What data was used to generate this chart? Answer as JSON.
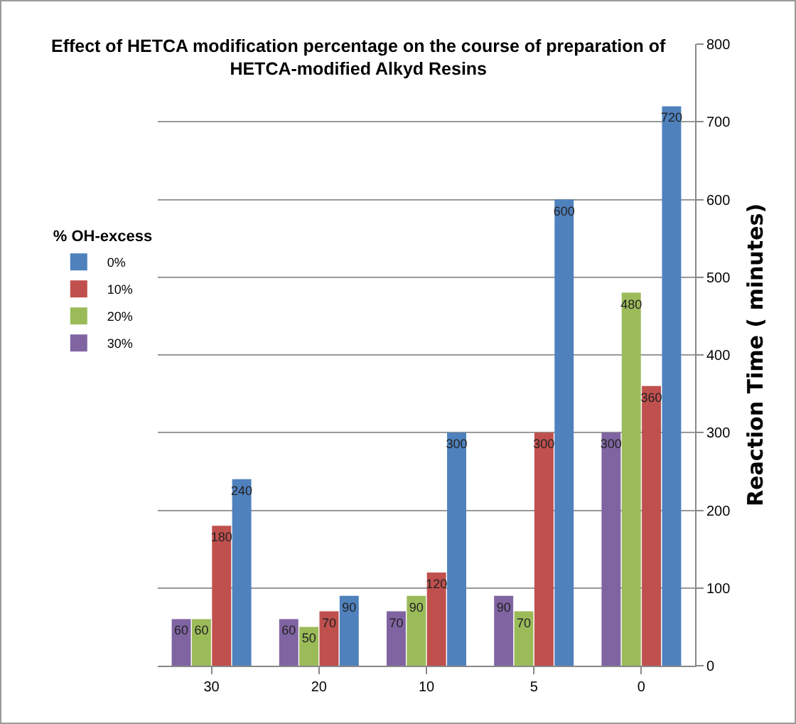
{
  "chart_data": {
    "type": "bar",
    "title": "Effect of HETCA modification percentage on the course of preparation of\nHETCA-modified Alkyd Resins",
    "ylabel": "Reaction Time ( minutes)",
    "legend_title": "% OH-excess",
    "categories": [
      "30",
      "20",
      "10",
      "5",
      "0"
    ],
    "series": [
      {
        "name": "30%",
        "color": "#8064a2",
        "values": [
          60,
          60,
          70,
          90,
          300
        ]
      },
      {
        "name": "20%",
        "color": "#9bbb59",
        "values": [
          60,
          50,
          90,
          70,
          480
        ]
      },
      {
        "name": "10%",
        "color": "#c0504d",
        "values": [
          180,
          70,
          120,
          300,
          360
        ]
      },
      {
        "name": "0%",
        "color": "#4f81bd",
        "values": [
          240,
          90,
          300,
          600,
          720
        ]
      }
    ],
    "ylim": [
      0,
      800
    ],
    "yticks": [
      0,
      100,
      200,
      300,
      400,
      500,
      600,
      700,
      800
    ],
    "grid": "y",
    "legend": "left",
    "data_labels": true
  }
}
